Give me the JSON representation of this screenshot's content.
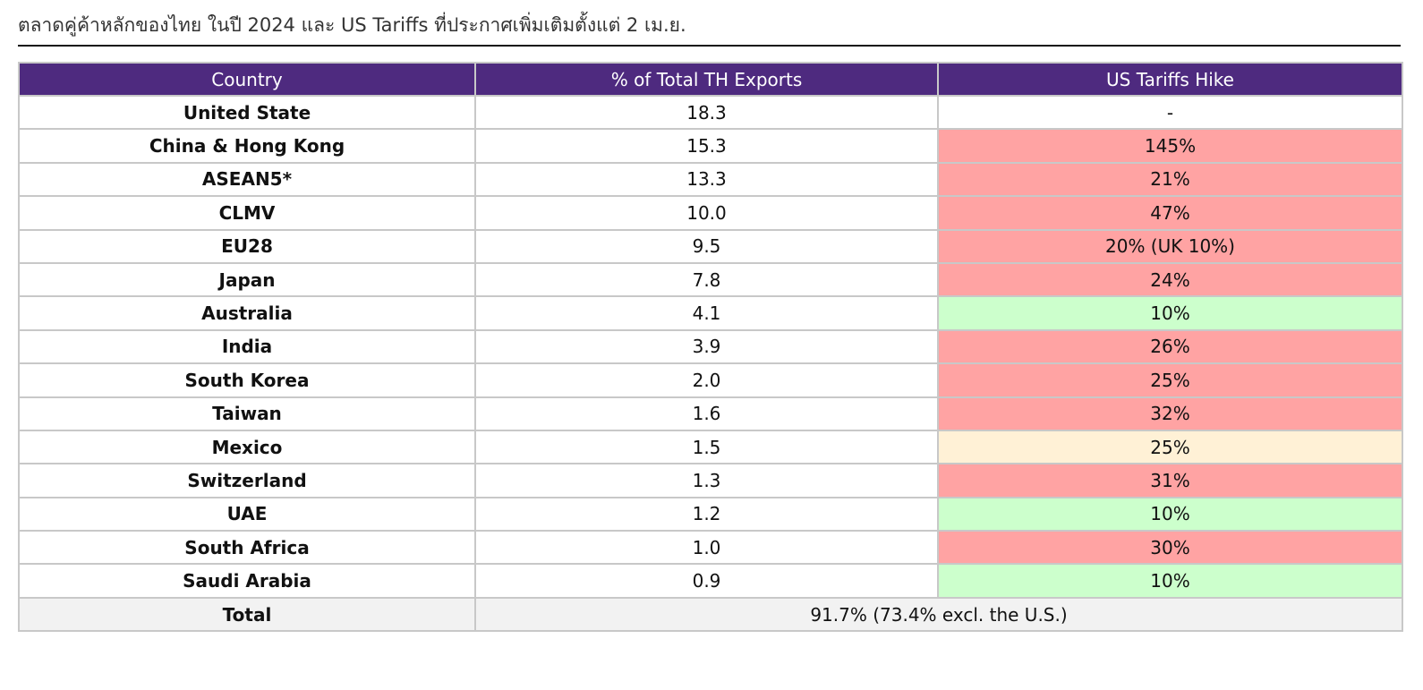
{
  "title": "ตลาดคู่ค้าหลักของไทย ในปี 2024 และ US Tariffs ที่ประกาศเพิ่มเติมตั้งแต่ 2 เม.ย.",
  "colors": {
    "header_bg": "#4e2a7f",
    "high_tariff": "#ffa3a3",
    "base_tariff": "#ccffcc",
    "mexico_tariff": "#fff1d6",
    "total_bg": "#f2f2f2"
  },
  "table": {
    "headers": [
      "Country",
      "% of Total TH Exports",
      "US Tariffs Hike"
    ],
    "rows": [
      {
        "country": "United State",
        "share": "18.3",
        "tariff": "-",
        "tone": "none"
      },
      {
        "country": "China & Hong Kong",
        "share": "15.3",
        "tariff": "145%",
        "tone": "red"
      },
      {
        "country": "ASEAN5*",
        "share": "13.3",
        "tariff": "21%",
        "tone": "red"
      },
      {
        "country": "CLMV",
        "share": "10.0",
        "tariff": "47%",
        "tone": "red"
      },
      {
        "country": "EU28",
        "share": "9.5",
        "tariff": "20% (UK 10%)",
        "tone": "red"
      },
      {
        "country": "Japan",
        "share": "7.8",
        "tariff": "24%",
        "tone": "red"
      },
      {
        "country": "Australia",
        "share": "4.1",
        "tariff": "10%",
        "tone": "green"
      },
      {
        "country": "India",
        "share": "3.9",
        "tariff": "26%",
        "tone": "red"
      },
      {
        "country": "South Korea",
        "share": "2.0",
        "tariff": "25%",
        "tone": "red"
      },
      {
        "country": "Taiwan",
        "share": "1.6",
        "tariff": "32%",
        "tone": "red"
      },
      {
        "country": "Mexico",
        "share": "1.5",
        "tariff": "25%",
        "tone": "cream"
      },
      {
        "country": "Switzerland",
        "share": "1.3",
        "tariff": "31%",
        "tone": "red"
      },
      {
        "country": "UAE",
        "share": "1.2",
        "tariff": "10%",
        "tone": "green"
      },
      {
        "country": "South Africa",
        "share": "1.0",
        "tariff": "30%",
        "tone": "red"
      },
      {
        "country": "Saudi Arabia",
        "share": "0.9",
        "tariff": "10%",
        "tone": "green"
      }
    ],
    "total": {
      "label": "Total",
      "value": "91.7% (73.4% excl. the U.S.)"
    }
  }
}
